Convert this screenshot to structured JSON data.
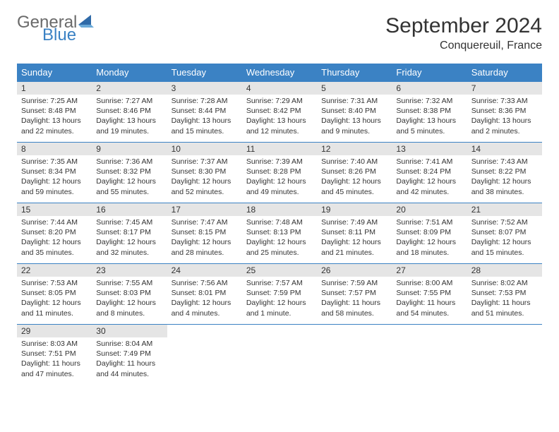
{
  "logo": {
    "text1": "General",
    "text2": "Blue",
    "icon_color": "#2f6aa8"
  },
  "title": "September 2024",
  "location": "Conquereuil, France",
  "header_bg": "#3b82c4",
  "header_text_color": "#ffffff",
  "daynum_bg": "#e5e5e5",
  "border_color": "#3b82c4",
  "columns": [
    "Sunday",
    "Monday",
    "Tuesday",
    "Wednesday",
    "Thursday",
    "Friday",
    "Saturday"
  ],
  "days": [
    {
      "n": "1",
      "sr": "7:25 AM",
      "ss": "8:48 PM",
      "dl": "13 hours and 22 minutes."
    },
    {
      "n": "2",
      "sr": "7:27 AM",
      "ss": "8:46 PM",
      "dl": "13 hours and 19 minutes."
    },
    {
      "n": "3",
      "sr": "7:28 AM",
      "ss": "8:44 PM",
      "dl": "13 hours and 15 minutes."
    },
    {
      "n": "4",
      "sr": "7:29 AM",
      "ss": "8:42 PM",
      "dl": "13 hours and 12 minutes."
    },
    {
      "n": "5",
      "sr": "7:31 AM",
      "ss": "8:40 PM",
      "dl": "13 hours and 9 minutes."
    },
    {
      "n": "6",
      "sr": "7:32 AM",
      "ss": "8:38 PM",
      "dl": "13 hours and 5 minutes."
    },
    {
      "n": "7",
      "sr": "7:33 AM",
      "ss": "8:36 PM",
      "dl": "13 hours and 2 minutes."
    },
    {
      "n": "8",
      "sr": "7:35 AM",
      "ss": "8:34 PM",
      "dl": "12 hours and 59 minutes."
    },
    {
      "n": "9",
      "sr": "7:36 AM",
      "ss": "8:32 PM",
      "dl": "12 hours and 55 minutes."
    },
    {
      "n": "10",
      "sr": "7:37 AM",
      "ss": "8:30 PM",
      "dl": "12 hours and 52 minutes."
    },
    {
      "n": "11",
      "sr": "7:39 AM",
      "ss": "8:28 PM",
      "dl": "12 hours and 49 minutes."
    },
    {
      "n": "12",
      "sr": "7:40 AM",
      "ss": "8:26 PM",
      "dl": "12 hours and 45 minutes."
    },
    {
      "n": "13",
      "sr": "7:41 AM",
      "ss": "8:24 PM",
      "dl": "12 hours and 42 minutes."
    },
    {
      "n": "14",
      "sr": "7:43 AM",
      "ss": "8:22 PM",
      "dl": "12 hours and 38 minutes."
    },
    {
      "n": "15",
      "sr": "7:44 AM",
      "ss": "8:20 PM",
      "dl": "12 hours and 35 minutes."
    },
    {
      "n": "16",
      "sr": "7:45 AM",
      "ss": "8:17 PM",
      "dl": "12 hours and 32 minutes."
    },
    {
      "n": "17",
      "sr": "7:47 AM",
      "ss": "8:15 PM",
      "dl": "12 hours and 28 minutes."
    },
    {
      "n": "18",
      "sr": "7:48 AM",
      "ss": "8:13 PM",
      "dl": "12 hours and 25 minutes."
    },
    {
      "n": "19",
      "sr": "7:49 AM",
      "ss": "8:11 PM",
      "dl": "12 hours and 21 minutes."
    },
    {
      "n": "20",
      "sr": "7:51 AM",
      "ss": "8:09 PM",
      "dl": "12 hours and 18 minutes."
    },
    {
      "n": "21",
      "sr": "7:52 AM",
      "ss": "8:07 PM",
      "dl": "12 hours and 15 minutes."
    },
    {
      "n": "22",
      "sr": "7:53 AM",
      "ss": "8:05 PM",
      "dl": "12 hours and 11 minutes."
    },
    {
      "n": "23",
      "sr": "7:55 AM",
      "ss": "8:03 PM",
      "dl": "12 hours and 8 minutes."
    },
    {
      "n": "24",
      "sr": "7:56 AM",
      "ss": "8:01 PM",
      "dl": "12 hours and 4 minutes."
    },
    {
      "n": "25",
      "sr": "7:57 AM",
      "ss": "7:59 PM",
      "dl": "12 hours and 1 minute."
    },
    {
      "n": "26",
      "sr": "7:59 AM",
      "ss": "7:57 PM",
      "dl": "11 hours and 58 minutes."
    },
    {
      "n": "27",
      "sr": "8:00 AM",
      "ss": "7:55 PM",
      "dl": "11 hours and 54 minutes."
    },
    {
      "n": "28",
      "sr": "8:02 AM",
      "ss": "7:53 PM",
      "dl": "11 hours and 51 minutes."
    },
    {
      "n": "29",
      "sr": "8:03 AM",
      "ss": "7:51 PM",
      "dl": "11 hours and 47 minutes."
    },
    {
      "n": "30",
      "sr": "8:04 AM",
      "ss": "7:49 PM",
      "dl": "11 hours and 44 minutes."
    }
  ],
  "labels": {
    "sunrise": "Sunrise:",
    "sunset": "Sunset:",
    "daylight": "Daylight:"
  }
}
